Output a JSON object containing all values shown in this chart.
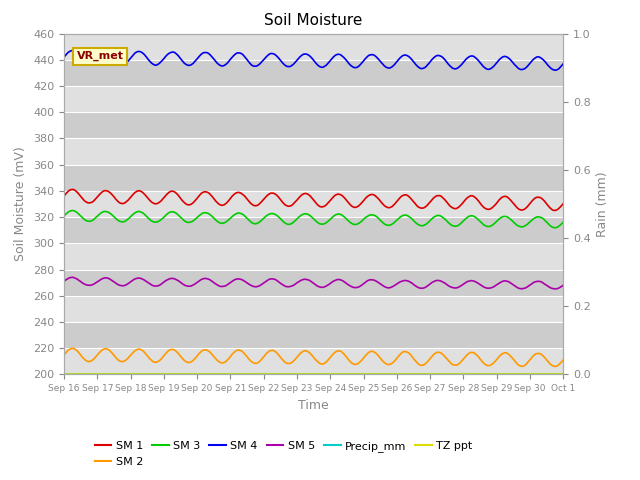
{
  "title": "Soil Moisture",
  "ylabel_left": "Soil Moisture (mV)",
  "ylabel_right": "Rain (mm)",
  "xlabel": "Time",
  "ylim_left": [
    200,
    460
  ],
  "ylim_right": [
    0.0,
    1.0
  ],
  "yticks_left": [
    200,
    220,
    240,
    260,
    280,
    300,
    320,
    340,
    360,
    380,
    400,
    420,
    440,
    460
  ],
  "yticks_right": [
    0.0,
    0.2,
    0.4,
    0.6,
    0.8,
    1.0
  ],
  "n_points": 500,
  "bg_color": "#e0e0e0",
  "bg_band_color": "#cccccc",
  "sm1_color": "#dd0000",
  "sm2_color": "#ff9900",
  "sm3_color": "#00cc00",
  "sm4_color": "#0000ee",
  "sm5_color": "#aa00aa",
  "precip_color": "#00cccc",
  "tzppt_color": "#dddd00",
  "sm1_mean": 336,
  "sm1_amp": 5,
  "sm1_trend": -6,
  "sm2_mean": 215,
  "sm2_amp": 5,
  "sm2_trend": -4,
  "sm3_mean": 321,
  "sm3_amp": 4,
  "sm3_trend": -5,
  "sm4_mean": 442,
  "sm4_amp": 5,
  "sm4_trend": -5,
  "sm5_mean": 271,
  "sm5_amp": 3,
  "sm5_trend": -3,
  "tzppt_value": 200,
  "freq_osc": 15,
  "noise_scale": 0.4,
  "xtick_labels": [
    "Sep 16",
    "Sep 17",
    "Sep 18",
    "Sep 19",
    "Sep 20",
    "Sep 21",
    "Sep 22",
    "Sep 23",
    "Sep 24",
    "Sep 25",
    "Sep 26",
    "Sep 27",
    "Sep 28",
    "Sep 29",
    "Sep 30",
    "Oct 1"
  ],
  "annotation_text": "VR_met",
  "font_color": "#888888",
  "title_fontsize": 11,
  "label_fontsize": 9,
  "tick_fontsize": 8,
  "xtick_fontsize": 6.5,
  "legend_fontsize": 8
}
